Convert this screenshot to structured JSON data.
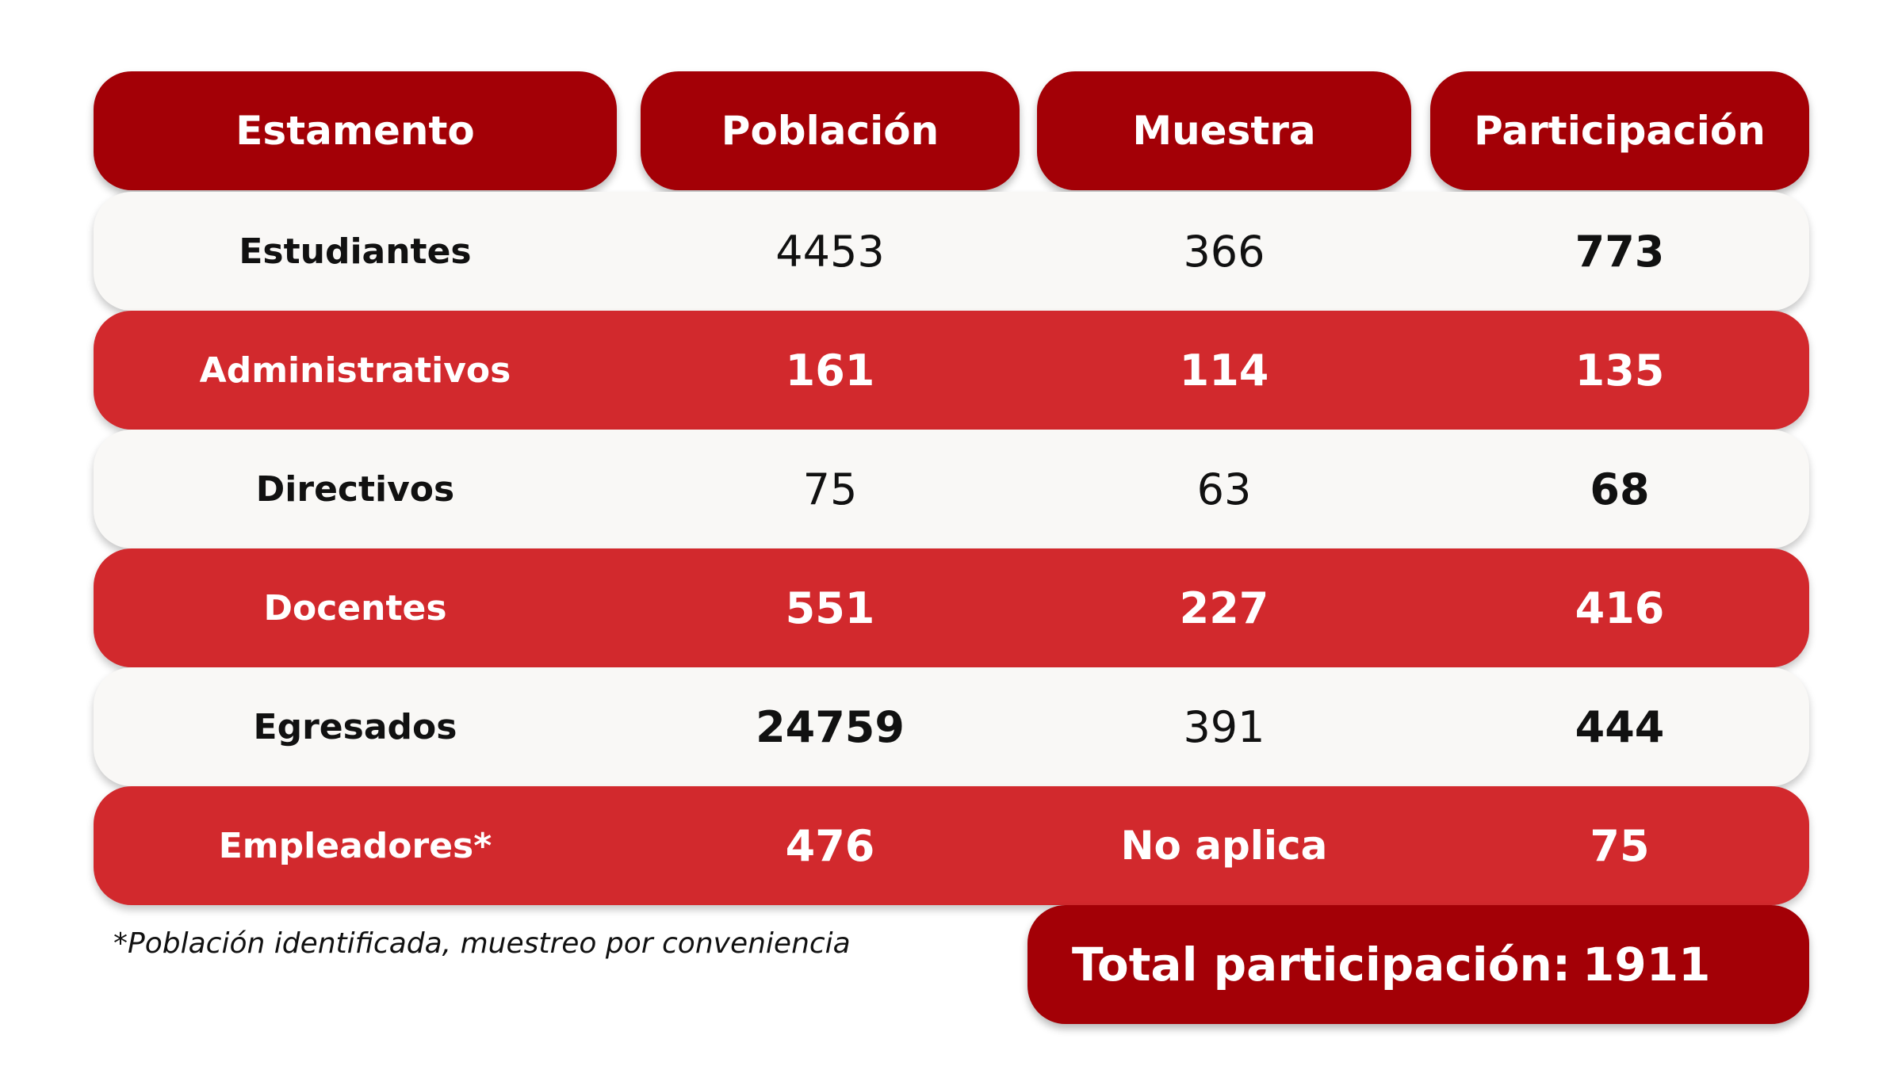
{
  "table": {
    "headers": [
      "Estamento",
      "Población",
      "Muestra",
      "Participación"
    ],
    "rows": [
      {
        "estamento": "Estudiantes",
        "poblacion": "4453",
        "muestra": "366",
        "participacion": "773"
      },
      {
        "estamento": "Administrativos",
        "poblacion": "161",
        "muestra": "114",
        "participacion": "135"
      },
      {
        "estamento": "Directivos",
        "poblacion": "75",
        "muestra": "63",
        "participacion": "68"
      },
      {
        "estamento": "Docentes",
        "poblacion": "551",
        "muestra": "227",
        "participacion": "416"
      },
      {
        "estamento": "Egresados",
        "poblacion": "24759",
        "muestra": "391",
        "participacion": "444"
      },
      {
        "estamento": "Empleadores*",
        "poblacion": "476",
        "muestra": "No aplica",
        "participacion": "75"
      }
    ]
  },
  "footnote": "*Población identificada, muestreo por conveniencia",
  "total": {
    "label": "Total participación:",
    "value": "1911"
  },
  "colors": {
    "header": "#a30006",
    "row_red": "#d2292d",
    "row_light": "#f9f8f6"
  }
}
